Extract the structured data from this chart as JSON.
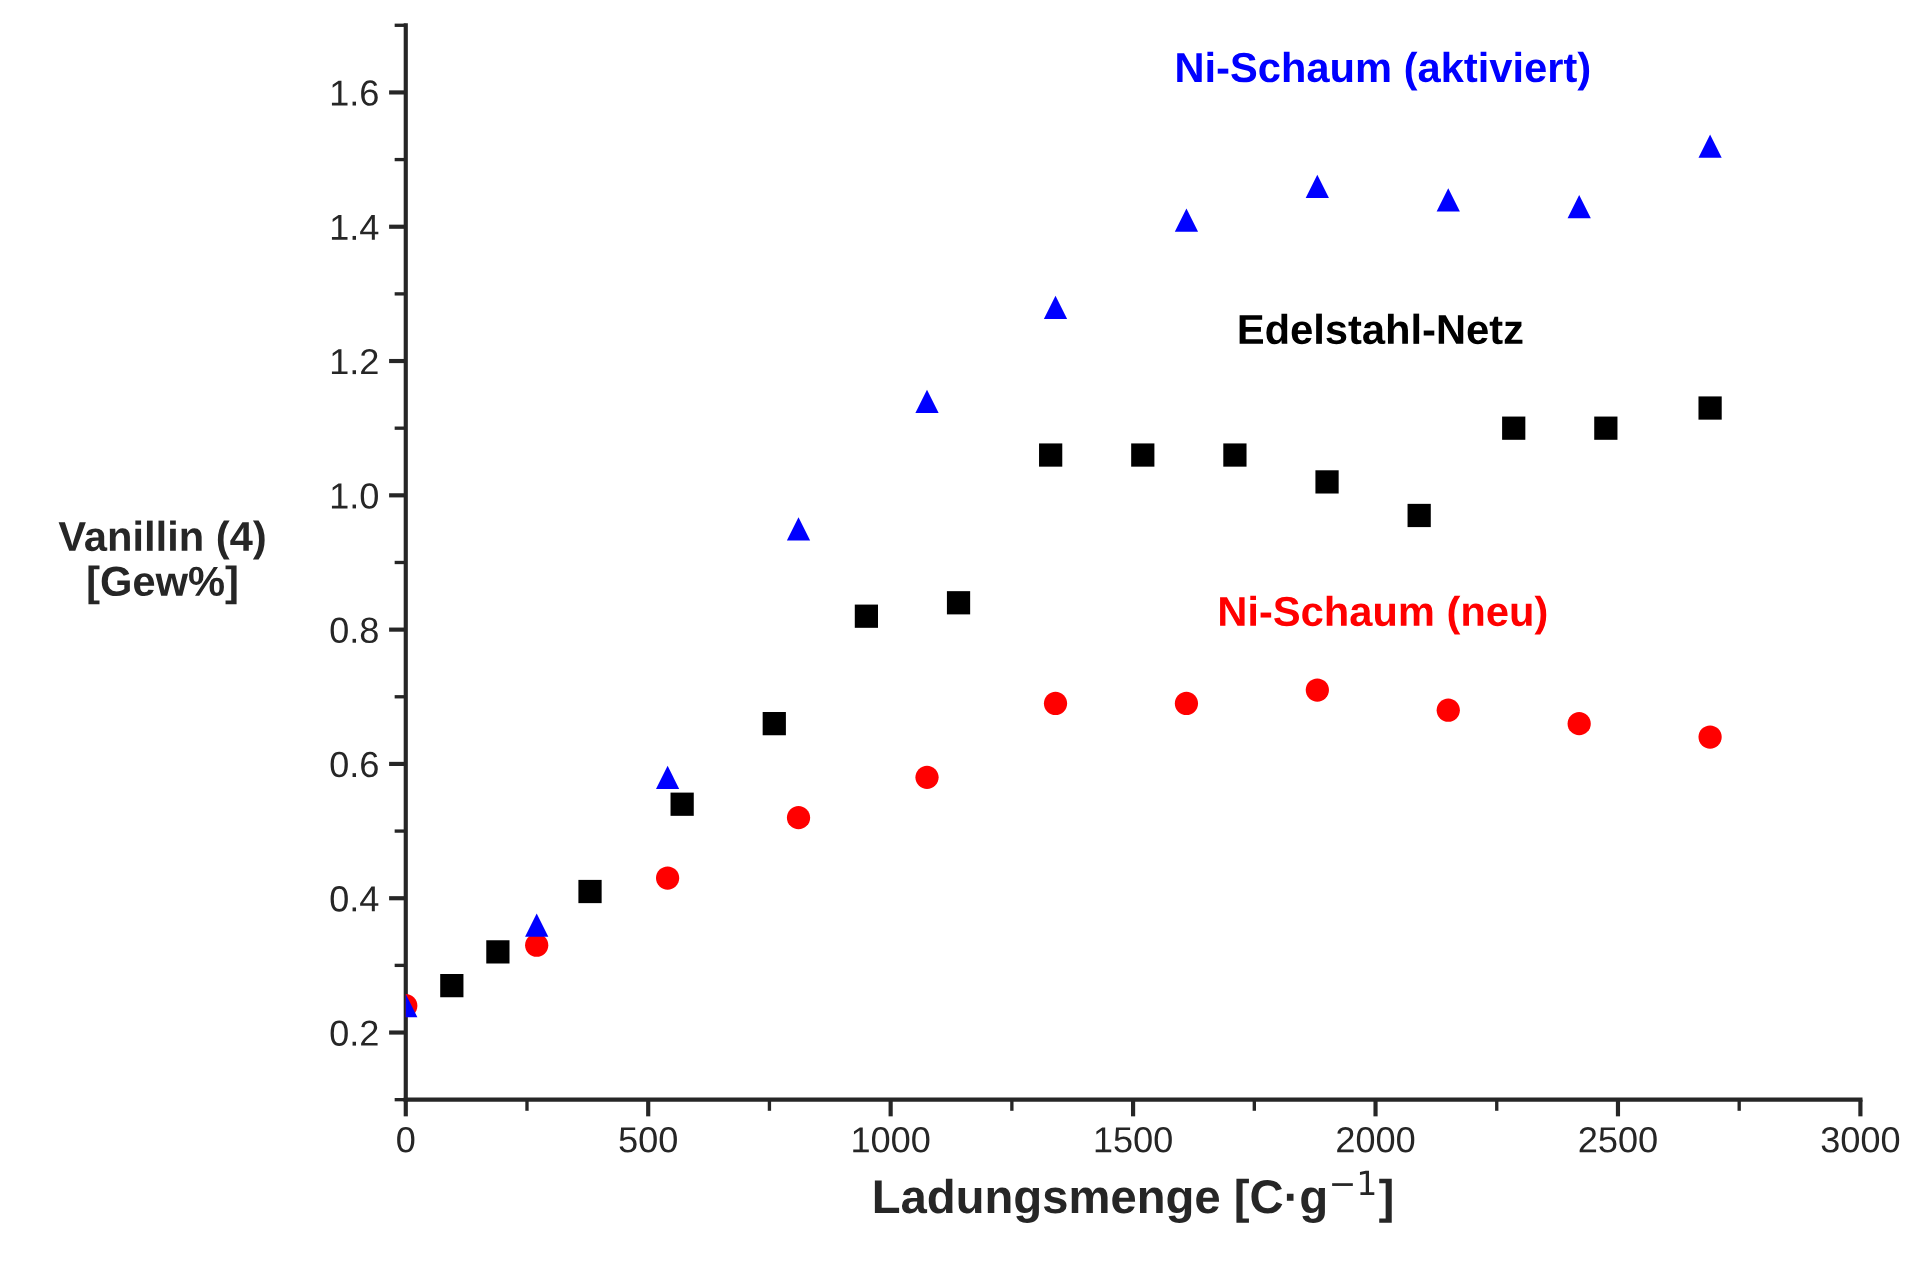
{
  "chart_data": {
    "type": "scatter",
    "xlabel": "Ladungsmenge [C·g$^{−1}$]",
    "ylabel": "Vanillin (4)\n[Gew%]",
    "xlim": [
      0,
      3000
    ],
    "xticks": [
      0,
      500,
      1000,
      1500,
      2000,
      2500,
      3000
    ],
    "ylim": [
      0.1,
      1.7
    ],
    "yticks": [
      0.2,
      0.4,
      0.6,
      0.8,
      {
        "value": 1.0,
        "label": "1.0"
      },
      1.2,
      1.4,
      1.6
    ],
    "grid": false,
    "legend": false,
    "series": [
      {
        "name": "Ni-Schaum (aktiviert)",
        "color": "#0000ff",
        "marker": "triangle",
        "x": [
          0,
          270,
          540,
          810,
          1075,
          1340,
          1610,
          1880,
          2150,
          2420,
          2690
        ],
        "values": [
          0.24,
          0.36,
          0.58,
          0.95,
          1.14,
          1.28,
          1.41,
          1.46,
          1.44,
          1.43,
          1.52
        ]
      },
      {
        "name": "Edelstahl-Netz",
        "color": "#000000",
        "marker": "square",
        "x": [
          95,
          190,
          380,
          570,
          760,
          950,
          1140,
          1330,
          1520,
          1710,
          1900,
          2090,
          2285,
          2475,
          2690
        ],
        "values": [
          0.27,
          0.32,
          0.41,
          0.54,
          0.66,
          0.82,
          0.84,
          1.06,
          1.06,
          1.06,
          1.02,
          0.97,
          1.1,
          1.1,
          1.13
        ]
      },
      {
        "name": "Ni-Schaum (neu)",
        "color": "#ff0000",
        "marker": "circle",
        "x": [
          0,
          270,
          540,
          810,
          1075,
          1340,
          1610,
          1880,
          2150,
          2420,
          2690
        ],
        "values": [
          0.24,
          0.33,
          0.43,
          0.52,
          0.58,
          0.69,
          0.69,
          0.71,
          0.68,
          0.66,
          0.64
        ]
      }
    ]
  }
}
